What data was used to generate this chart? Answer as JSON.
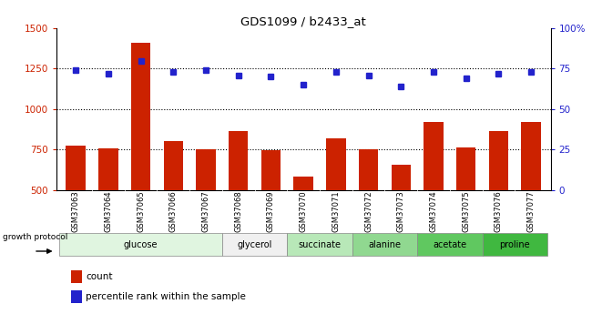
{
  "title": "GDS1099 / b2433_at",
  "samples": [
    "GSM37063",
    "GSM37064",
    "GSM37065",
    "GSM37066",
    "GSM37067",
    "GSM37068",
    "GSM37069",
    "GSM37070",
    "GSM37071",
    "GSM37072",
    "GSM37073",
    "GSM37074",
    "GSM37075",
    "GSM37076",
    "GSM37077"
  ],
  "counts": [
    775,
    757,
    1410,
    800,
    752,
    862,
    745,
    585,
    820,
    752,
    654,
    920,
    762,
    862,
    920
  ],
  "percentiles": [
    74,
    72,
    80,
    73,
    74,
    71,
    70,
    65,
    73,
    71,
    64,
    73,
    69,
    72,
    73
  ],
  "ylim_left": [
    500,
    1500
  ],
  "ylim_right": [
    0,
    100
  ],
  "yticks_left": [
    500,
    750,
    1000,
    1250,
    1500
  ],
  "yticks_right": [
    0,
    25,
    50,
    75,
    100
  ],
  "bar_color": "#cc2200",
  "dot_color": "#2222cc",
  "groups": [
    {
      "label": "glucose",
      "indices": [
        0,
        1,
        2,
        3,
        4
      ],
      "color": "#e0f5e0"
    },
    {
      "label": "glycerol",
      "indices": [
        5,
        6
      ],
      "color": "#f0f0f0"
    },
    {
      "label": "succinate",
      "indices": [
        7,
        8
      ],
      "color": "#b8e8b8"
    },
    {
      "label": "alanine",
      "indices": [
        9,
        10
      ],
      "color": "#90d890"
    },
    {
      "label": "acetate",
      "indices": [
        11,
        12
      ],
      "color": "#60c860"
    },
    {
      "label": "proline",
      "indices": [
        13,
        14
      ],
      "color": "#40b840"
    }
  ],
  "growth_protocol_label": "growth protocol",
  "legend_count": "count",
  "legend_percentile": "percentile rank within the sample"
}
